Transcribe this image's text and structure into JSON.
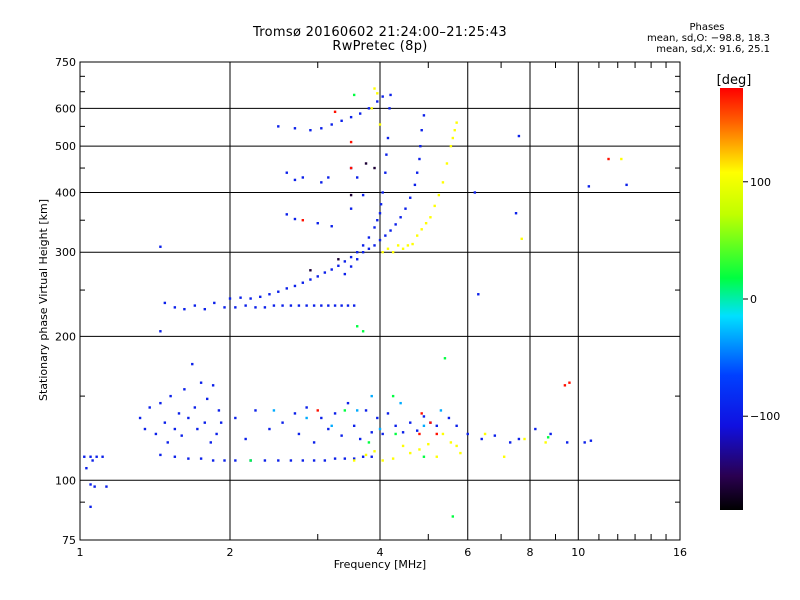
{
  "title": "Tromsø 20160602 21:24:00–21:25:43",
  "subtitle": "RwPretec (8p)",
  "stats": {
    "header": "Phases",
    "line_o": "mean, sd,O: −98.8, 18.3",
    "line_x": "mean, sd,X:  91.6, 25.1"
  },
  "chart_data": {
    "type": "scatter",
    "title": "Tromsø 20160602 21:24:00–21:25:43",
    "subtitle": "RwPretec (8p)",
    "xlabel": "Frequency [MHz]",
    "ylabel": "Stationary phase Virtual Height [km]",
    "x_scale": "log",
    "y_scale": "log",
    "xlim": [
      1,
      16
    ],
    "ylim": [
      75,
      750
    ],
    "x_ticks": [
      1,
      2,
      4,
      6,
      8,
      10,
      16
    ],
    "x_tick_labels": [
      "1",
      "2",
      "4",
      "6",
      "8",
      "10",
      "16"
    ],
    "y_ticks": [
      75,
      100,
      200,
      300,
      400,
      500,
      600,
      750
    ],
    "y_tick_labels": [
      "75",
      "100",
      "200",
      "300",
      "400",
      "500",
      "600",
      "750"
    ],
    "grid": true,
    "colorbar": {
      "label": "[deg]",
      "range": [
        -180,
        180
      ],
      "ticks": [
        100,
        0,
        -100
      ],
      "tick_labels": [
        "100",
        "0",
        "−100"
      ],
      "colors": [
        "#000000",
        "#2a0050",
        "#0000ff",
        "#00ffff",
        "#00ff00",
        "#ffff00",
        "#ff0000"
      ]
    },
    "series": [
      {
        "phase": -100,
        "points": [
          [
            1.02,
            112
          ],
          [
            1.05,
            112
          ],
          [
            1.08,
            112
          ],
          [
            1.11,
            112
          ],
          [
            1.03,
            106
          ],
          [
            1.06,
            110
          ],
          [
            1.05,
            98
          ],
          [
            1.07,
            97
          ],
          [
            1.05,
            88
          ],
          [
            1.13,
            97
          ]
        ]
      },
      {
        "phase": -100,
        "points": [
          [
            1.45,
            113
          ],
          [
            1.55,
            112
          ],
          [
            1.65,
            111
          ],
          [
            1.75,
            111
          ],
          [
            1.85,
            110
          ],
          [
            1.95,
            110
          ],
          [
            2.05,
            110
          ],
          [
            2.2,
            110
          ],
          [
            2.35,
            110
          ],
          [
            2.5,
            110
          ],
          [
            2.65,
            110
          ],
          [
            2.8,
            110
          ],
          [
            2.95,
            110
          ],
          [
            3.1,
            110
          ],
          [
            3.25,
            111
          ],
          [
            3.4,
            111
          ],
          [
            3.55,
            111
          ],
          [
            3.7,
            112
          ],
          [
            3.85,
            112
          ]
        ]
      },
      {
        "phase": -100,
        "points": [
          [
            1.32,
            135
          ],
          [
            1.35,
            128
          ],
          [
            1.38,
            142
          ],
          [
            1.42,
            125
          ],
          [
            1.45,
            145
          ],
          [
            1.48,
            132
          ],
          [
            1.5,
            120
          ],
          [
            1.52,
            150
          ],
          [
            1.55,
            128
          ],
          [
            1.58,
            138
          ],
          [
            1.6,
            124
          ],
          [
            1.62,
            155
          ],
          [
            1.65,
            135
          ],
          [
            1.68,
            175
          ],
          [
            1.7,
            142
          ],
          [
            1.72,
            128
          ],
          [
            1.75,
            160
          ],
          [
            1.78,
            132
          ],
          [
            1.8,
            148
          ],
          [
            1.83,
            120
          ],
          [
            1.85,
            158
          ],
          [
            1.88,
            125
          ],
          [
            1.9,
            140
          ],
          [
            1.92,
            132
          ]
        ]
      },
      {
        "phase": -100,
        "points": [
          [
            2.05,
            135
          ],
          [
            2.15,
            122
          ],
          [
            2.25,
            140
          ],
          [
            2.4,
            128
          ],
          [
            2.55,
            132
          ],
          [
            2.7,
            138
          ],
          [
            2.75,
            125
          ],
          [
            2.85,
            142
          ],
          [
            2.95,
            120
          ],
          [
            3.05,
            135
          ],
          [
            3.15,
            128
          ],
          [
            3.25,
            138
          ],
          [
            3.35,
            124
          ],
          [
            3.45,
            145
          ],
          [
            3.55,
            130
          ],
          [
            3.65,
            122
          ],
          [
            3.75,
            140
          ],
          [
            3.85,
            126
          ],
          [
            3.95,
            135
          ],
          [
            4.05,
            125
          ],
          [
            4.15,
            138
          ],
          [
            4.3,
            130
          ],
          [
            4.45,
            126
          ],
          [
            4.6,
            132
          ],
          [
            4.75,
            127
          ],
          [
            4.9,
            136
          ],
          [
            5.05,
            132
          ],
          [
            5.2,
            130
          ]
        ]
      },
      {
        "phase": -100,
        "points": [
          [
            1.48,
            235
          ],
          [
            1.55,
            230
          ],
          [
            1.62,
            228
          ],
          [
            1.7,
            232
          ],
          [
            1.78,
            228
          ],
          [
            1.86,
            235
          ],
          [
            1.95,
            230
          ],
          [
            2.05,
            230
          ],
          [
            2.15,
            232
          ],
          [
            2.25,
            230
          ],
          [
            2.35,
            230
          ],
          [
            2.45,
            232
          ],
          [
            2.55,
            232
          ],
          [
            2.65,
            232
          ],
          [
            2.75,
            232
          ],
          [
            2.85,
            232
          ],
          [
            2.95,
            232
          ],
          [
            3.05,
            232
          ],
          [
            3.15,
            232
          ],
          [
            3.25,
            232
          ],
          [
            3.35,
            232
          ],
          [
            3.45,
            232
          ],
          [
            3.55,
            232
          ]
        ]
      },
      {
        "phase": -100,
        "points": [
          [
            2.0,
            240
          ],
          [
            2.1,
            241
          ],
          [
            2.2,
            240
          ],
          [
            2.3,
            242
          ],
          [
            2.4,
            245
          ],
          [
            2.5,
            248
          ],
          [
            2.6,
            252
          ],
          [
            2.7,
            255
          ],
          [
            2.8,
            259
          ],
          [
            2.9,
            263
          ],
          [
            3.0,
            267
          ],
          [
            3.1,
            272
          ],
          [
            3.2,
            276
          ],
          [
            3.3,
            281
          ],
          [
            3.4,
            287
          ],
          [
            3.5,
            293
          ],
          [
            3.6,
            300
          ],
          [
            3.7,
            310
          ],
          [
            3.8,
            322
          ],
          [
            3.9,
            338
          ],
          [
            3.95,
            350
          ],
          [
            4.0,
            362
          ],
          [
            4.02,
            378
          ],
          [
            4.05,
            400
          ],
          [
            4.1,
            440
          ],
          [
            4.12,
            480
          ],
          [
            4.15,
            520
          ],
          [
            4.18,
            600
          ],
          [
            4.2,
            640
          ]
        ]
      },
      {
        "phase": -100,
        "points": [
          [
            3.4,
            270
          ],
          [
            3.5,
            280
          ],
          [
            3.6,
            290
          ],
          [
            3.7,
            300
          ],
          [
            3.8,
            305
          ],
          [
            3.9,
            310
          ],
          [
            4.0,
            318
          ],
          [
            4.1,
            325
          ],
          [
            4.2,
            333
          ],
          [
            4.3,
            343
          ],
          [
            4.4,
            355
          ],
          [
            4.5,
            370
          ],
          [
            4.6,
            390
          ],
          [
            4.7,
            415
          ],
          [
            4.75,
            440
          ],
          [
            4.8,
            470
          ],
          [
            4.82,
            500
          ],
          [
            4.85,
            540
          ],
          [
            4.9,
            580
          ]
        ]
      },
      {
        "phase": -100,
        "points": [
          [
            2.5,
            550
          ],
          [
            2.7,
            545
          ],
          [
            2.9,
            540
          ],
          [
            3.05,
            545
          ],
          [
            3.2,
            555
          ],
          [
            3.35,
            565
          ],
          [
            3.5,
            575
          ],
          [
            3.65,
            585
          ],
          [
            3.8,
            600
          ],
          [
            3.95,
            620
          ],
          [
            4.05,
            635
          ],
          [
            2.6,
            440
          ],
          [
            2.7,
            425
          ],
          [
            2.8,
            430
          ],
          [
            3.05,
            420
          ],
          [
            3.15,
            430
          ],
          [
            3.5,
            450
          ],
          [
            3.6,
            430
          ],
          [
            2.6,
            360
          ],
          [
            2.7,
            352
          ],
          [
            3.0,
            345
          ],
          [
            3.2,
            340
          ],
          [
            3.5,
            370
          ],
          [
            3.7,
            395
          ],
          [
            1.45,
            308
          ],
          [
            1.45,
            205
          ],
          [
            6.2,
            400
          ],
          [
            6.3,
            245
          ],
          [
            7.5,
            362
          ],
          [
            7.6,
            525
          ],
          [
            10.5,
            412
          ],
          [
            12.5,
            415
          ]
        ]
      },
      {
        "phase": -100,
        "points": [
          [
            5.5,
            135
          ],
          [
            5.7,
            130
          ],
          [
            6.0,
            125
          ],
          [
            6.4,
            122
          ],
          [
            6.8,
            124
          ],
          [
            7.3,
            120
          ],
          [
            7.6,
            122
          ],
          [
            8.2,
            128
          ],
          [
            8.8,
            125
          ],
          [
            9.5,
            120
          ],
          [
            10.3,
            120
          ],
          [
            10.6,
            121
          ]
        ]
      },
      {
        "phase": 100,
        "points": [
          [
            3.55,
            110
          ],
          [
            3.75,
            113
          ],
          [
            3.9,
            115
          ],
          [
            4.05,
            110
          ],
          [
            4.25,
            111
          ],
          [
            4.45,
            118
          ],
          [
            4.6,
            114
          ],
          [
            4.8,
            116
          ],
          [
            5.0,
            119
          ],
          [
            5.2,
            112
          ],
          [
            5.35,
            125
          ],
          [
            5.55,
            120
          ],
          [
            5.7,
            118
          ],
          [
            5.8,
            114
          ],
          [
            6.5,
            125
          ],
          [
            7.1,
            112
          ],
          [
            7.8,
            122
          ],
          [
            8.6,
            120
          ]
        ]
      },
      {
        "phase": 100,
        "points": [
          [
            4.05,
            300
          ],
          [
            4.15,
            305
          ],
          [
            4.25,
            300
          ],
          [
            4.35,
            310
          ],
          [
            4.45,
            305
          ],
          [
            4.55,
            310
          ],
          [
            4.65,
            312
          ],
          [
            4.75,
            325
          ],
          [
            4.85,
            335
          ],
          [
            4.95,
            345
          ],
          [
            5.05,
            355
          ],
          [
            5.15,
            375
          ],
          [
            5.25,
            395
          ],
          [
            5.35,
            420
          ],
          [
            5.45,
            460
          ],
          [
            5.55,
            500
          ],
          [
            5.6,
            520
          ],
          [
            5.65,
            540
          ],
          [
            5.7,
            560
          ],
          [
            3.9,
            660
          ],
          [
            3.95,
            645
          ],
          [
            3.85,
            600
          ],
          [
            4.0,
            555
          ],
          [
            7.7,
            320
          ],
          [
            12.2,
            470
          ]
        ]
      },
      {
        "phase": 0,
        "points": [
          [
            3.6,
            210
          ],
          [
            3.7,
            205
          ],
          [
            3.55,
            640
          ],
          [
            4.25,
            150
          ],
          [
            2.2,
            110
          ],
          [
            3.4,
            140
          ],
          [
            4.9,
            112
          ],
          [
            5.4,
            180
          ],
          [
            8.7,
            123
          ],
          [
            5.6,
            84
          ],
          [
            3.8,
            120
          ],
          [
            4.3,
            125
          ]
        ]
      },
      {
        "phase": -40,
        "points": [
          [
            2.85,
            135
          ],
          [
            3.2,
            130
          ],
          [
            3.6,
            140
          ],
          [
            4.0,
            128
          ],
          [
            4.4,
            145
          ],
          [
            4.9,
            130
          ],
          [
            5.3,
            140
          ],
          [
            2.45,
            140
          ],
          [
            3.85,
            150
          ]
        ]
      },
      {
        "phase": 175,
        "points": [
          [
            3.25,
            590
          ],
          [
            3.5,
            510
          ],
          [
            3.5,
            450
          ],
          [
            4.8,
            125
          ],
          [
            4.85,
            138
          ],
          [
            5.05,
            132
          ],
          [
            5.2,
            125
          ],
          [
            9.4,
            158
          ],
          [
            9.6,
            160
          ],
          [
            11.5,
            470
          ],
          [
            2.8,
            350
          ],
          [
            3.0,
            140
          ]
        ]
      },
      {
        "phase": -160,
        "points": [
          [
            3.75,
            460
          ],
          [
            3.9,
            450
          ],
          [
            3.5,
            395
          ],
          [
            3.3,
            290
          ],
          [
            2.9,
            275
          ]
        ]
      }
    ]
  }
}
